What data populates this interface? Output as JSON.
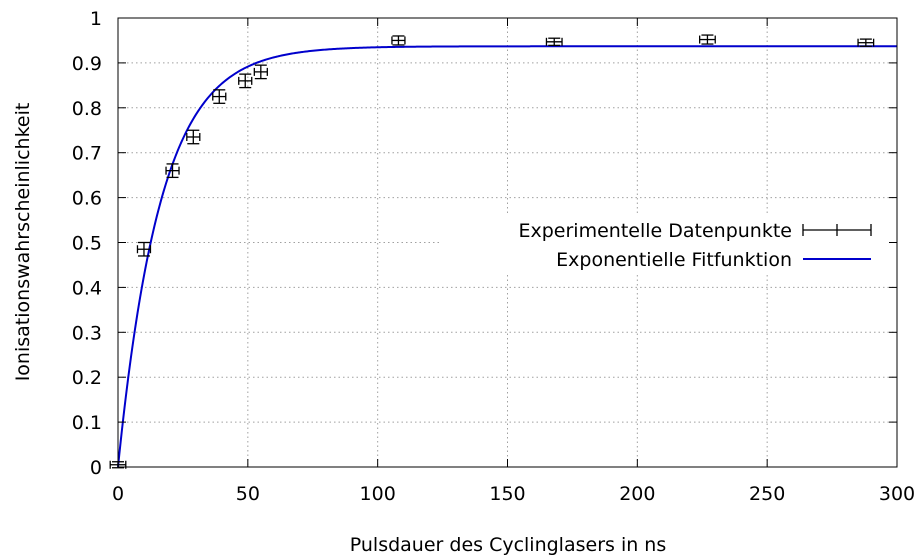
{
  "chart_data": {
    "type": "scatter",
    "title": "",
    "xlabel": "Pulsdauer des Cyclinglasers in ns",
    "ylabel": "Ionisationswahrscheinlichkeit",
    "xlim": [
      0,
      300
    ],
    "ylim": [
      0,
      1
    ],
    "x_ticks": [
      0,
      50,
      100,
      150,
      200,
      250,
      300
    ],
    "y_ticks": [
      0,
      0.1,
      0.2,
      0.3,
      0.4,
      0.5,
      0.6,
      0.7,
      0.8,
      0.9,
      1
    ],
    "x_tick_labels": [
      "0",
      "50",
      "100",
      "150",
      "200",
      "250",
      "300"
    ],
    "y_tick_labels": [
      "0",
      "0.1",
      "0.2",
      "0.3",
      "0.4",
      "0.5",
      "0.6",
      "0.7",
      "0.8",
      "0.9",
      "1"
    ],
    "grid": true,
    "legend_position": "right",
    "series": [
      {
        "name": "Experimentelle Datenpunkte",
        "kind": "points-with-errorbars",
        "color": "#000000",
        "points": [
          {
            "x": 0,
            "y": 0.005,
            "xerr": 3,
            "yerr": 0.005
          },
          {
            "x": 10,
            "y": 0.485,
            "xerr": 2.5,
            "yerr": 0.015
          },
          {
            "x": 21,
            "y": 0.66,
            "xerr": 2.5,
            "yerr": 0.015
          },
          {
            "x": 29,
            "y": 0.735,
            "xerr": 2.5,
            "yerr": 0.015
          },
          {
            "x": 39,
            "y": 0.825,
            "xerr": 2.5,
            "yerr": 0.015
          },
          {
            "x": 49,
            "y": 0.86,
            "xerr": 2.5,
            "yerr": 0.015
          },
          {
            "x": 55,
            "y": 0.88,
            "xerr": 2.5,
            "yerr": 0.015
          },
          {
            "x": 108,
            "y": 0.95,
            "xerr": 2.5,
            "yerr": 0.01
          },
          {
            "x": 168,
            "y": 0.947,
            "xerr": 3,
            "yerr": 0.008
          },
          {
            "x": 227,
            "y": 0.952,
            "xerr": 3,
            "yerr": 0.01
          },
          {
            "x": 288,
            "y": 0.945,
            "xerr": 3,
            "yerr": 0.008
          }
        ]
      },
      {
        "name": "Exponentielle Fitfunktion",
        "kind": "function",
        "color": "#0000cc",
        "model": "a*(1-exp(-x/tau))",
        "params": {
          "a": 0.937,
          "tau": 16.5
        }
      }
    ]
  }
}
